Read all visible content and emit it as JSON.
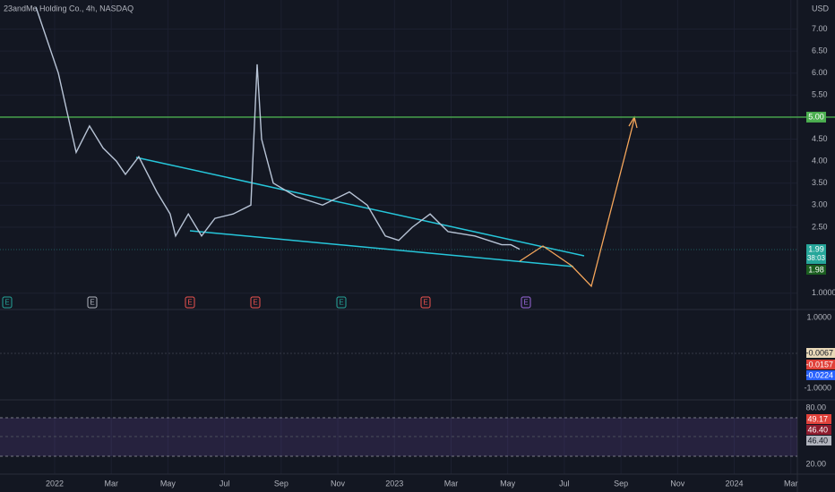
{
  "chart_data": {
    "type": "line",
    "title": "23andMe Holding Co., 4h, NASDAQ",
    "y_label": "USD",
    "x": [
      -0.66,
      0.13,
      0.76,
      1.23,
      1.71,
      2.18,
      2.5,
      2.97,
      3.61,
      4.08,
      4.27,
      4.72,
      5.19,
      5.66,
      6.3,
      6.93,
      7.15,
      7.31,
      7.72,
      8.51,
      9.46,
      10.41,
      11.04,
      11.68,
      12.15,
      12.63,
      13.26,
      13.89,
      14.84,
      15.79,
      16.11,
      16.42
    ],
    "values": [
      7.5,
      6.0,
      4.2,
      4.8,
      4.3,
      4.0,
      3.7,
      4.1,
      3.3,
      2.8,
      2.3,
      2.8,
      2.3,
      2.7,
      2.8,
      3.0,
      6.2,
      4.5,
      3.5,
      3.2,
      3.0,
      3.3,
      3.0,
      2.3,
      2.2,
      2.5,
      2.8,
      2.4,
      2.3,
      2.1,
      2.1,
      2.0
    ],
    "color": "#b8c4d6",
    "xlim": [
      -1.93,
      26.23
    ],
    "xticks": [
      {
        "value": 0,
        "label": "2022"
      },
      {
        "value": 2,
        "label": "Mar"
      },
      {
        "value": 4,
        "label": "May"
      },
      {
        "value": 6,
        "label": "Jul"
      },
      {
        "value": 8,
        "label": "Sep"
      },
      {
        "value": 10,
        "label": "Nov"
      },
      {
        "value": 12,
        "label": "2023"
      },
      {
        "value": 14,
        "label": "Mar"
      },
      {
        "value": 16,
        "label": "May"
      },
      {
        "value": 18,
        "label": "Jul"
      },
      {
        "value": 20,
        "label": "Sep"
      },
      {
        "value": 22,
        "label": "Nov"
      },
      {
        "value": 24,
        "label": "2024"
      },
      {
        "value": 26,
        "label": "Mar"
      }
    ],
    "ylim": [
      0.65,
      7.66
    ],
    "yticks": [
      {
        "value": 1,
        "label": "1.0000"
      },
      {
        "value": 2.5,
        "label": "2.50"
      },
      {
        "value": 3,
        "label": "3.00"
      },
      {
        "value": 3.5,
        "label": "3.50"
      },
      {
        "value": 4,
        "label": "4.00"
      },
      {
        "value": 4.5,
        "label": "4.50"
      },
      {
        "value": 5.5,
        "label": "5.50"
      },
      {
        "value": 6,
        "label": "6.00"
      },
      {
        "value": 6.5,
        "label": "6.50"
      },
      {
        "value": 7,
        "label": "7.00"
      }
    ],
    "level": {
      "value": 5,
      "label": "5.00",
      "color": "#4caf50"
    },
    "last_price": {
      "value": 1.99,
      "label": "1.99",
      "countdown": "38:03"
    },
    "prev_close": {
      "value": 1.98,
      "label": "1.98"
    },
    "earnings_markers": [
      "E",
      "E",
      "E",
      "E",
      "E",
      "E",
      "E"
    ]
  },
  "macd": {
    "upper": "1.0000",
    "lower": "-1.0000",
    "values": [
      "-0.0067",
      "-0.0157",
      "-0.0224"
    ]
  },
  "rsi": {
    "upper": "80.00",
    "lower": "20.00",
    "values": [
      "49.17",
      "46.40",
      "46.40"
    ]
  }
}
